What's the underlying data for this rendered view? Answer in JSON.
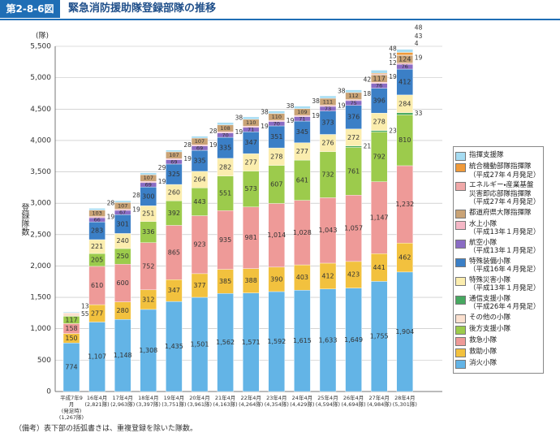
{
  "chart_data": {
    "type": "stacked-bar",
    "figure_number": "第2-8-6図",
    "title": "緊急消防援助隊登録部隊の推移",
    "y_unit": "(隊)",
    "y_label": "登録隊数",
    "note": "（備考）表下部の括弧書きは、重複登録を除いた隊数。",
    "ylim": [
      0,
      5500
    ],
    "yticks": [
      0,
      500,
      {
        "value": 1000,
        "label": "1,000"
      },
      {
        "value": 1500,
        "label": "1,500"
      },
      {
        "value": 2000,
        "label": "2,000"
      },
      {
        "value": 2500,
        "label": "2,500"
      },
      {
        "value": 3000,
        "label": "3,000"
      },
      {
        "value": 3500,
        "label": "3,500"
      },
      {
        "value": 4000,
        "label": "4,000"
      },
      {
        "value": 4500,
        "label": "4,500"
      },
      {
        "value": 5000,
        "label": "5,000"
      },
      {
        "value": 5500,
        "label": "5,500"
      }
    ],
    "categories": [
      "平成7年9月\n(発足時)\n(1,267隊)",
      "16年4月\n(2,821隊)",
      "17年4月\n(2,963隊)",
      "18年4月\n(3,397隊)",
      "19年4月\n(3,751隊)",
      "20年4月\n(3,961隊)",
      "21年4月\n(4,163隊)",
      "22年4月\n(4,264隊)",
      "23年4月\n(4,354隊)",
      "24年4月\n(4,429隊)",
      "25年4月\n(4,594隊)",
      "26年4月\n(4,694隊)",
      "27年4月\n(4,984隊)",
      "28年4月\n(5,301隊)"
    ],
    "series": [
      {
        "name": "消火小隊",
        "color": "#63b4e6",
        "values": [
          774,
          1107,
          1148,
          1308,
          1435,
          1501,
          1562,
          1571,
          1592,
          1615,
          1633,
          1649,
          1755,
          1904
        ],
        "value_labels": [
          "774",
          "1,107",
          "1,148",
          "1,308",
          "1,435",
          "1,501",
          "1,562",
          "1,571",
          "1,592",
          "1,615",
          "1,633",
          "1,649",
          "1,755",
          "1,904"
        ]
      },
      {
        "name": "救助小隊",
        "color": "#f2c13e",
        "values": [
          150,
          277,
          280,
          312,
          347,
          377,
          385,
          388,
          390,
          403,
          412,
          423,
          441,
          462
        ]
      },
      {
        "name": "救急小隊",
        "color": "#ee9a98",
        "values": [
          158,
          610,
          600,
          752,
          865,
          923,
          935,
          981,
          1014,
          1028,
          1043,
          1057,
          1147,
          1232
        ],
        "value_labels": [
          "158",
          "610",
          "600",
          "752",
          "865",
          "923",
          "935",
          "981",
          "1,014",
          "1,028",
          "1,043",
          "1,057",
          "1,147",
          "1,232"
        ]
      },
      {
        "name": "後方支援小隊",
        "color": "#9ccb4c",
        "values": [
          117,
          205,
          250,
          336,
          392,
          443,
          551,
          573,
          607,
          641,
          732,
          761,
          792,
          810
        ]
      },
      {
        "name": "その他の小隊",
        "color": "#fbe0cf",
        "values": [
          55,
          0,
          0,
          0,
          0,
          0,
          0,
          0,
          0,
          0,
          0,
          0,
          0,
          0
        ]
      },
      {
        "name": "通信支援小隊\n（平成26年４月発足）",
        "color": "#46a860",
        "values": [
          0,
          0,
          0,
          0,
          0,
          0,
          0,
          0,
          0,
          0,
          0,
          21,
          23,
          33
        ]
      },
      {
        "name": "特殊災害小隊\n（平成13年１月発足）",
        "color": "#fbedae",
        "values": [
          0,
          221,
          240,
          251,
          260,
          264,
          282,
          277,
          278,
          277,
          276,
          272,
          278,
          284
        ]
      },
      {
        "name": "特殊装備小隊\n（平成16年４月発足）",
        "color": "#3b7fc6",
        "values": [
          0,
          283,
          301,
          300,
          325,
          335,
          335,
          347,
          351,
          345,
          373,
          376,
          396,
          412
        ]
      },
      {
        "name": "航空小隊\n（平成13年１月発足）",
        "color": "#8a6cc4",
        "values": [
          0,
          66,
          67,
          69,
          69,
          69,
          70,
          71,
          70,
          71,
          73,
          75,
          76,
          76
        ]
      },
      {
        "name": "水上小隊\n（平成13年１月発足）",
        "color": "#f5b7c6",
        "values": [
          0,
          19,
          19,
          19,
          19,
          19,
          19,
          19,
          19,
          19,
          19,
          18,
          19,
          19
        ]
      },
      {
        "name": "都道府県大隊指揮隊",
        "color": "#c9a376",
        "values": [
          0,
          103,
          107,
          107,
          107,
          107,
          108,
          110,
          110,
          109,
          111,
          112,
          117,
          124
        ]
      },
      {
        "name": "エネルギー・産業基盤\n災害即応部隊指揮隊\n（平成27年４月発足）",
        "color": "#f0a8a8",
        "values": [
          0,
          0,
          0,
          0,
          0,
          0,
          0,
          0,
          0,
          0,
          0,
          0,
          12,
          4
        ]
      },
      {
        "name": "統合機動部隊指揮隊\n（平成27年４月発足）",
        "color": "#f09a3a",
        "values": [
          0,
          0,
          0,
          0,
          0,
          0,
          0,
          0,
          0,
          0,
          0,
          0,
          15,
          43
        ]
      },
      {
        "name": "指揮支援隊",
        "color": "#a6dcf2",
        "values": [
          13,
          28,
          28,
          29,
          28,
          28,
          38,
          38,
          38,
          38,
          38,
          42,
          48,
          48
        ]
      }
    ]
  }
}
